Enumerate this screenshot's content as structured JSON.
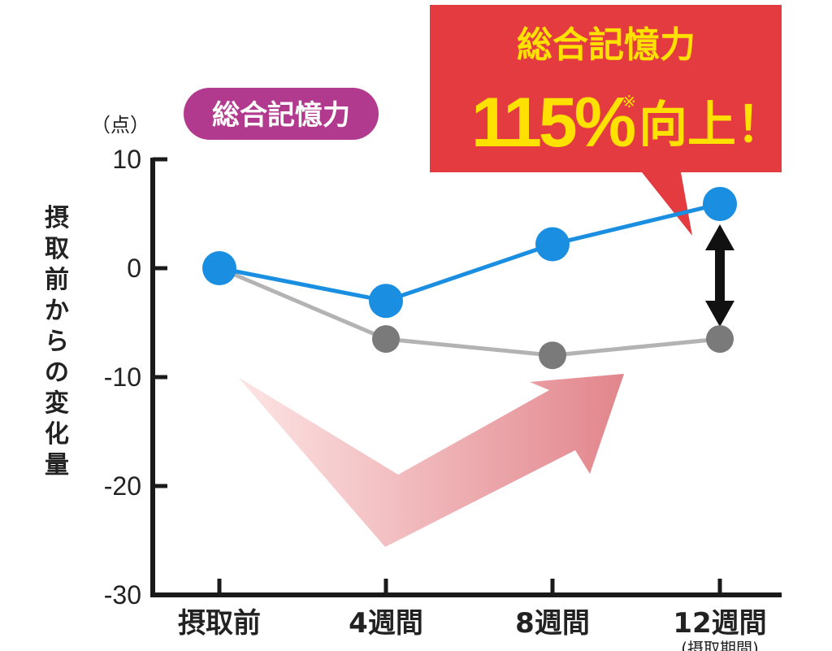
{
  "chart_data": {
    "type": "line",
    "title": "総合記憶力",
    "unit_label": "（点）",
    "ylabel": "摂取前からの変化量",
    "categories": [
      "摂取前",
      "4週間",
      "8週間",
      "12週間"
    ],
    "category_note": "(摂取期間)",
    "y_ticks": [
      10,
      0,
      -10,
      -20,
      -30
    ],
    "ylim": [
      -30,
      10
    ],
    "grid": false,
    "series": [
      {
        "color": "#1a8ee0",
        "values": [
          0,
          -3,
          2.2,
          5.9
        ]
      },
      {
        "color": "#7a7a7a",
        "values": [
          0,
          -6.5,
          -8,
          -6.5
        ]
      }
    ],
    "callout": {
      "title": "総合記憶力",
      "percent": "115%",
      "note_mark": "※",
      "suffix": "向上！"
    },
    "colors": {
      "callout_bg": "#e33b3f",
      "callout_text": "#ffe100",
      "pill_bg": "#b23a8e",
      "arrow": "#e07f86"
    }
  }
}
